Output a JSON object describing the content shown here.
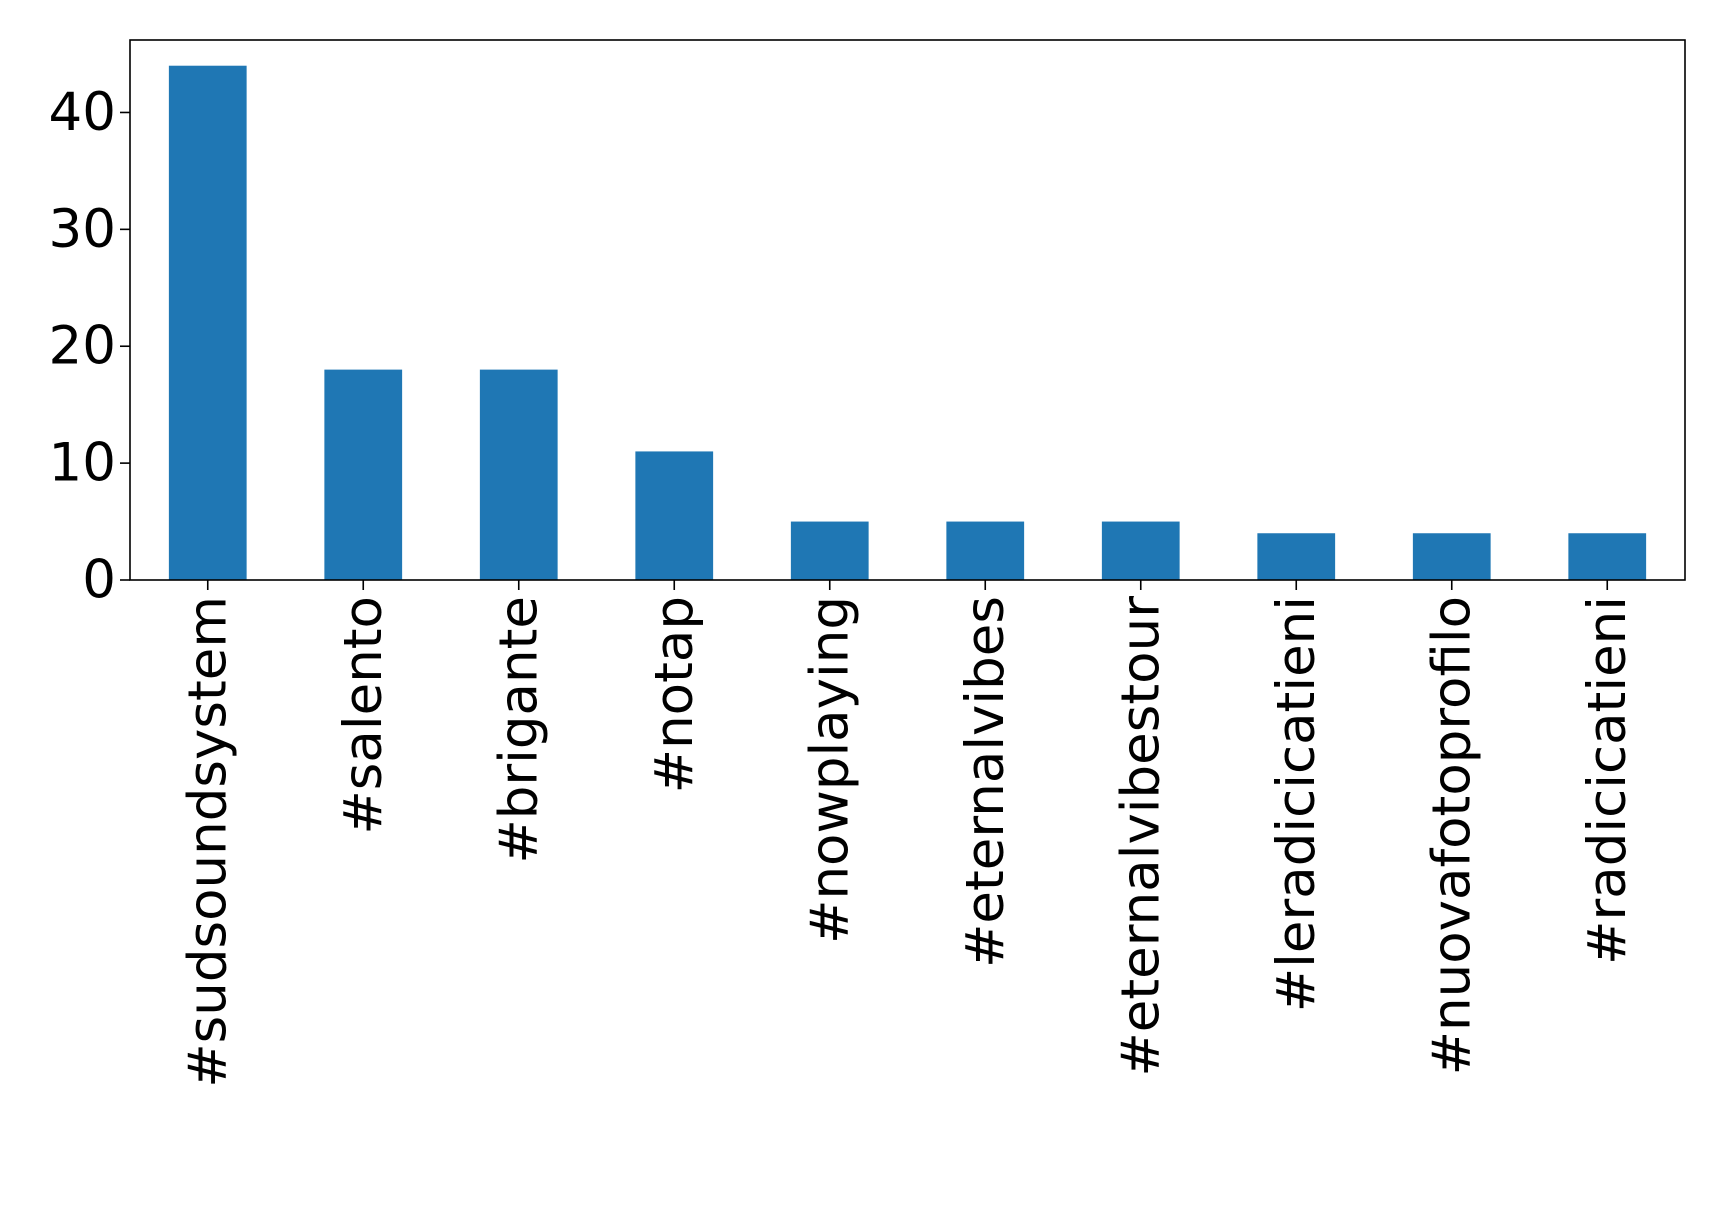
{
  "chart_data": {
    "type": "bar",
    "title": "",
    "xlabel": "",
    "ylabel": "",
    "categories": [
      "#sudsoundsystem",
      "#salento",
      "#brigante",
      "#notap",
      "#nowplaying",
      "#eternalvibes",
      "#eternalvibestour",
      "#leradicicatieni",
      "#nuovafotoprofilo",
      "#radicicatieni"
    ],
    "values": [
      44,
      18,
      18,
      11,
      5,
      5,
      5,
      4,
      4,
      4
    ],
    "ylim": [
      0,
      46.2
    ],
    "yticks": [
      0,
      10,
      20,
      30,
      40
    ],
    "grid": false,
    "legend": "none",
    "bar_color": "#1f77b4"
  }
}
